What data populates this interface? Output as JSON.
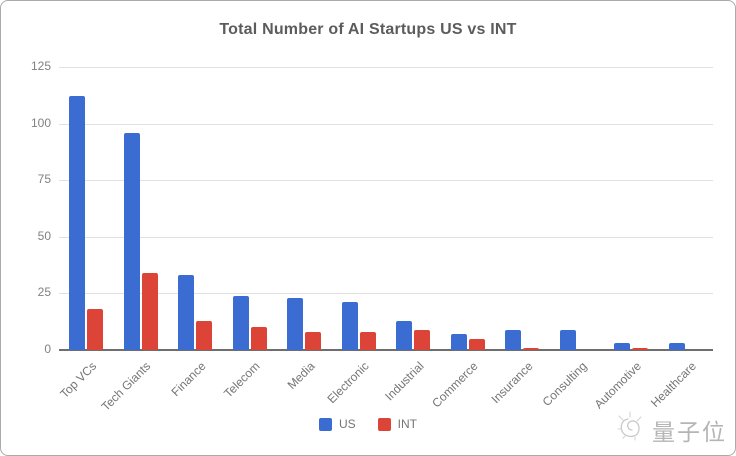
{
  "title": "Total Number of AI Startups US vs INT",
  "chart_data": {
    "type": "bar",
    "title": "Total Number of AI Startups US vs INT",
    "categories": [
      "Top VCs",
      "Tech Giants",
      "Finance",
      "Telecom",
      "Media",
      "Electronic",
      "Industrial",
      "Commerce",
      "Insurance",
      "Consulting",
      "Automotive",
      "Healthcare"
    ],
    "series": [
      {
        "name": "US",
        "color": "#3b6cd2",
        "values": [
          112,
          96,
          33,
          24,
          23,
          21,
          13,
          7,
          9,
          9,
          3,
          3
        ]
      },
      {
        "name": "INT",
        "color": "#db4437",
        "values": [
          18,
          34,
          13,
          10,
          8,
          8,
          9,
          5,
          1,
          0,
          1,
          0
        ]
      }
    ],
    "xlabel": "",
    "ylabel": "",
    "ylim": [
      0,
      125
    ],
    "yticks": [
      0,
      25,
      50,
      75,
      100,
      125
    ],
    "grid": true,
    "legend_position": "bottom"
  },
  "colors": {
    "us": "#3b6cd2",
    "int": "#db4437",
    "title_text": "#5c5c5c",
    "axis_text": "#808080",
    "gridline": "#e2e2e2",
    "baseline": "#6e6e6e"
  },
  "watermark": {
    "text": "量子位"
  }
}
